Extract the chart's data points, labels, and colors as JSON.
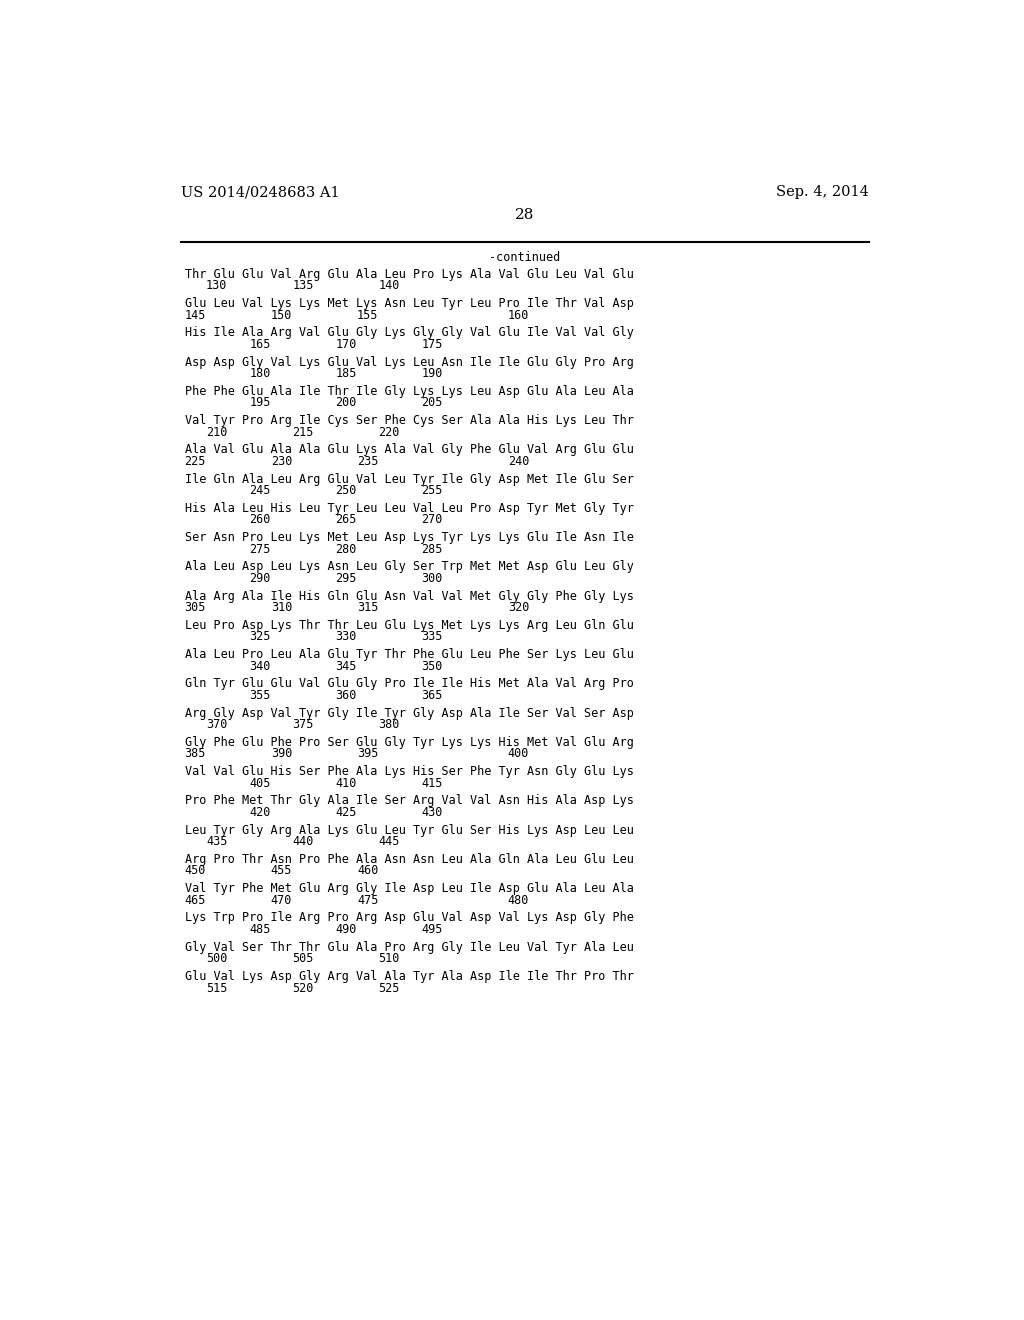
{
  "header_left": "US 2014/0248683 A1",
  "header_right": "Sep. 4, 2014",
  "page_number": "28",
  "continued_text": "-continued",
  "background_color": "#ffffff",
  "text_color": "#000000",
  "groups": [
    {
      "aa": "Thr Glu Glu Val Arg Glu Ala Leu Pro Lys Ala Val Glu Leu Val Glu",
      "nums": [
        [
          "130",
          1
        ],
        [
          "135",
          5
        ],
        [
          "140",
          9
        ]
      ]
    },
    {
      "aa": "Glu Leu Val Lys Lys Met Lys Asn Leu Tyr Leu Pro Ile Thr Val Asp",
      "nums": [
        [
          "145",
          0
        ],
        [
          "150",
          4
        ],
        [
          "155",
          8
        ],
        [
          "160",
          15
        ]
      ]
    },
    {
      "aa": "His Ile Ala Arg Val Glu Gly Lys Gly Gly Val Glu Ile Val Val Gly",
      "nums": [
        [
          "165",
          3
        ],
        [
          "170",
          7
        ],
        [
          "175",
          11
        ]
      ]
    },
    {
      "aa": "Asp Asp Gly Val Lys Glu Val Lys Leu Asn Ile Ile Glu Gly Pro Arg",
      "nums": [
        [
          "180",
          3
        ],
        [
          "185",
          7
        ],
        [
          "190",
          11
        ]
      ]
    },
    {
      "aa": "Phe Phe Glu Ala Ile Thr Ile Gly Lys Lys Leu Asp Glu Ala Leu Ala",
      "nums": [
        [
          "195",
          3
        ],
        [
          "200",
          7
        ],
        [
          "205",
          11
        ]
      ]
    },
    {
      "aa": "Val Tyr Pro Arg Ile Cys Ser Phe Cys Ser Ala Ala His Lys Leu Thr",
      "nums": [
        [
          "210",
          1
        ],
        [
          "215",
          5
        ],
        [
          "220",
          9
        ]
      ]
    },
    {
      "aa": "Ala Val Glu Ala Ala Glu Lys Ala Val Gly Phe Glu Val Arg Glu Glu",
      "nums": [
        [
          "225",
          0
        ],
        [
          "230",
          4
        ],
        [
          "235",
          8
        ],
        [
          "240",
          15
        ]
      ]
    },
    {
      "aa": "Ile Gln Ala Leu Arg Glu Val Leu Tyr Ile Gly Asp Met Ile Glu Ser",
      "nums": [
        [
          "245",
          3
        ],
        [
          "250",
          7
        ],
        [
          "255",
          11
        ]
      ]
    },
    {
      "aa": "His Ala Leu His Leu Tyr Leu Leu Val Leu Pro Asp Tyr Met Gly Tyr",
      "nums": [
        [
          "260",
          3
        ],
        [
          "265",
          7
        ],
        [
          "270",
          11
        ]
      ]
    },
    {
      "aa": "Ser Asn Pro Leu Lys Met Leu Asp Lys Tyr Lys Lys Glu Ile Asn Ile",
      "nums": [
        [
          "275",
          3
        ],
        [
          "280",
          7
        ],
        [
          "285",
          11
        ]
      ]
    },
    {
      "aa": "Ala Leu Asp Leu Lys Asn Leu Gly Ser Trp Met Met Asp Glu Leu Gly",
      "nums": [
        [
          "290",
          3
        ],
        [
          "295",
          7
        ],
        [
          "300",
          11
        ]
      ]
    },
    {
      "aa": "Ala Arg Ala Ile His Gln Glu Asn Val Val Met Gly Gly Phe Gly Lys",
      "nums": [
        [
          "305",
          0
        ],
        [
          "310",
          4
        ],
        [
          "315",
          8
        ],
        [
          "320",
          15
        ]
      ]
    },
    {
      "aa": "Leu Pro Asp Lys Thr Thr Leu Glu Lys Met Lys Lys Arg Leu Gln Glu",
      "nums": [
        [
          "325",
          3
        ],
        [
          "330",
          7
        ],
        [
          "335",
          11
        ]
      ]
    },
    {
      "aa": "Ala Leu Pro Leu Ala Glu Tyr Thr Phe Glu Leu Phe Ser Lys Leu Glu",
      "nums": [
        [
          "340",
          3
        ],
        [
          "345",
          7
        ],
        [
          "350",
          11
        ]
      ]
    },
    {
      "aa": "Gln Tyr Glu Glu Val Glu Gly Pro Ile Ile His Met Ala Val Arg Pro",
      "nums": [
        [
          "355",
          3
        ],
        [
          "360",
          7
        ],
        [
          "365",
          11
        ]
      ]
    },
    {
      "aa": "Arg Gly Asp Val Tyr Gly Ile Tyr Gly Asp Ala Ile Ser Val Ser Asp",
      "nums": [
        [
          "370",
          1
        ],
        [
          "375",
          5
        ],
        [
          "380",
          9
        ]
      ]
    },
    {
      "aa": "Gly Phe Glu Phe Pro Ser Glu Gly Tyr Lys Lys His Met Val Glu Arg",
      "nums": [
        [
          "385",
          0
        ],
        [
          "390",
          4
        ],
        [
          "395",
          8
        ],
        [
          "400",
          15
        ]
      ]
    },
    {
      "aa": "Val Val Glu His Ser Phe Ala Lys His Ser Phe Tyr Asn Gly Glu Lys",
      "nums": [
        [
          "405",
          3
        ],
        [
          "410",
          7
        ],
        [
          "415",
          11
        ]
      ]
    },
    {
      "aa": "Pro Phe Met Thr Gly Ala Ile Ser Arg Val Val Asn His Ala Asp Lys",
      "nums": [
        [
          "420",
          3
        ],
        [
          "425",
          7
        ],
        [
          "430",
          11
        ]
      ]
    },
    {
      "aa": "Leu Tyr Gly Arg Ala Lys Glu Leu Tyr Glu Ser His Lys Asp Leu Leu",
      "nums": [
        [
          "435",
          1
        ],
        [
          "440",
          5
        ],
        [
          "445",
          9
        ]
      ]
    },
    {
      "aa": "Arg Pro Thr Asn Pro Phe Ala Asn Asn Leu Ala Gln Ala Leu Glu Leu",
      "nums": [
        [
          "450",
          0
        ],
        [
          "455",
          4
        ],
        [
          "460",
          8
        ]
      ]
    },
    {
      "aa": "Val Tyr Phe Met Glu Arg Gly Ile Asp Leu Ile Asp Glu Ala Leu Ala",
      "nums": [
        [
          "465",
          0
        ],
        [
          "470",
          4
        ],
        [
          "475",
          8
        ],
        [
          "480",
          15
        ]
      ]
    },
    {
      "aa": "Lys Trp Pro Ile Arg Pro Arg Asp Glu Val Asp Val Lys Asp Gly Phe",
      "nums": [
        [
          "485",
          3
        ],
        [
          "490",
          7
        ],
        [
          "495",
          11
        ]
      ]
    },
    {
      "aa": "Gly Val Ser Thr Thr Glu Ala Pro Arg Gly Ile Leu Val Tyr Ala Leu",
      "nums": [
        [
          "500",
          1
        ],
        [
          "505",
          5
        ],
        [
          "510",
          9
        ]
      ]
    },
    {
      "aa": "Glu Val Lys Asp Gly Arg Val Ala Tyr Ala Asp Ile Ile Thr Pro Thr",
      "nums": [
        [
          "515",
          1
        ],
        [
          "520",
          5
        ],
        [
          "525",
          9
        ]
      ]
    }
  ]
}
